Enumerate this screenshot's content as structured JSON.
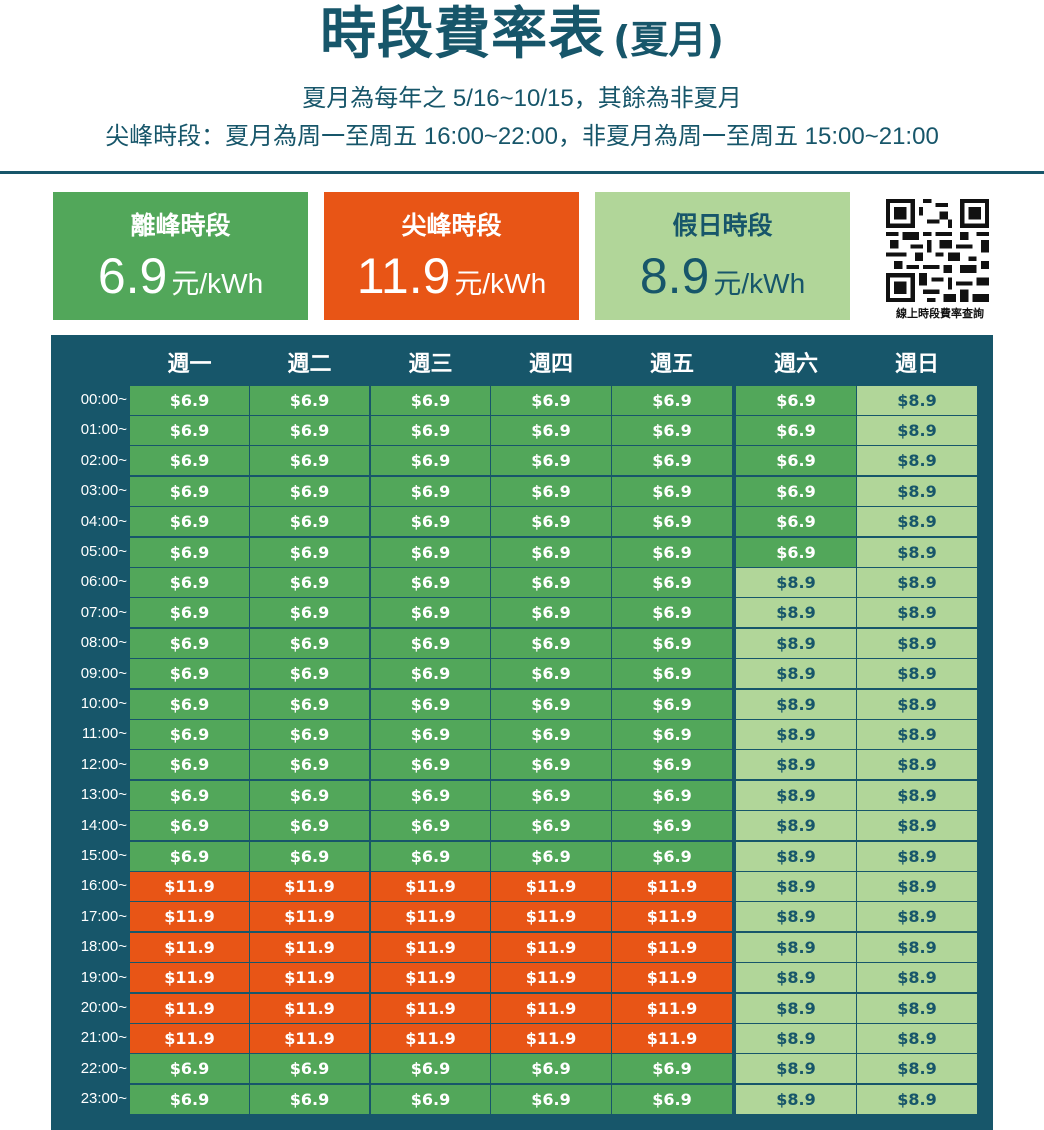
{
  "header": {
    "title": "時段費率表",
    "title_suffix": "(夏月)",
    "line1": "夏月為每年之 5/16~10/15，其餘為非夏月",
    "line2": "尖峰時段：夏月為周一至周五 16:00~22:00，非夏月為周一至周五 15:00~21:00"
  },
  "cards": [
    {
      "label": "離峰時段",
      "price": "6.9",
      "unit": "元/kWh",
      "color": "#52a75a"
    },
    {
      "label": "尖峰時段",
      "price": "11.9",
      "unit": "元/kWh",
      "color": "#e85516"
    },
    {
      "label": "假日時段",
      "price": "8.9",
      "unit": "元/kWh",
      "color": "#b1d699"
    }
  ],
  "qr": {
    "label": "線上時段費率查詢"
  },
  "colors": {
    "offpeak": "#52a75a",
    "peak": "#e85516",
    "holiday": "#b1d699",
    "frame": "#17566a"
  },
  "table": {
    "columns": [
      "週一",
      "週二",
      "週三",
      "週四",
      "週五",
      "週六",
      "週日"
    ],
    "times": [
      "00:00~",
      "01:00~",
      "02:00~",
      "03:00~",
      "04:00~",
      "05:00~",
      "06:00~",
      "07:00~",
      "08:00~",
      "09:00~",
      "10:00~",
      "11:00~",
      "12:00~",
      "13:00~",
      "14:00~",
      "15:00~",
      "16:00~",
      "17:00~",
      "18:00~",
      "19:00~",
      "20:00~",
      "21:00~",
      "22:00~",
      "23:00~"
    ],
    "rows": [
      [
        "$6.9",
        "$6.9",
        "$6.9",
        "$6.9",
        "$6.9",
        "$6.9",
        "$8.9"
      ],
      [
        "$6.9",
        "$6.9",
        "$6.9",
        "$6.9",
        "$6.9",
        "$6.9",
        "$8.9"
      ],
      [
        "$6.9",
        "$6.9",
        "$6.9",
        "$6.9",
        "$6.9",
        "$6.9",
        "$8.9"
      ],
      [
        "$6.9",
        "$6.9",
        "$6.9",
        "$6.9",
        "$6.9",
        "$6.9",
        "$8.9"
      ],
      [
        "$6.9",
        "$6.9",
        "$6.9",
        "$6.9",
        "$6.9",
        "$6.9",
        "$8.9"
      ],
      [
        "$6.9",
        "$6.9",
        "$6.9",
        "$6.9",
        "$6.9",
        "$6.9",
        "$8.9"
      ],
      [
        "$6.9",
        "$6.9",
        "$6.9",
        "$6.9",
        "$6.9",
        "$8.9",
        "$8.9"
      ],
      [
        "$6.9",
        "$6.9",
        "$6.9",
        "$6.9",
        "$6.9",
        "$8.9",
        "$8.9"
      ],
      [
        "$6.9",
        "$6.9",
        "$6.9",
        "$6.9",
        "$6.9",
        "$8.9",
        "$8.9"
      ],
      [
        "$6.9",
        "$6.9",
        "$6.9",
        "$6.9",
        "$6.9",
        "$8.9",
        "$8.9"
      ],
      [
        "$6.9",
        "$6.9",
        "$6.9",
        "$6.9",
        "$6.9",
        "$8.9",
        "$8.9"
      ],
      [
        "$6.9",
        "$6.9",
        "$6.9",
        "$6.9",
        "$6.9",
        "$8.9",
        "$8.9"
      ],
      [
        "$6.9",
        "$6.9",
        "$6.9",
        "$6.9",
        "$6.9",
        "$8.9",
        "$8.9"
      ],
      [
        "$6.9",
        "$6.9",
        "$6.9",
        "$6.9",
        "$6.9",
        "$8.9",
        "$8.9"
      ],
      [
        "$6.9",
        "$6.9",
        "$6.9",
        "$6.9",
        "$6.9",
        "$8.9",
        "$8.9"
      ],
      [
        "$6.9",
        "$6.9",
        "$6.9",
        "$6.9",
        "$6.9",
        "$8.9",
        "$8.9"
      ],
      [
        "$11.9",
        "$11.9",
        "$11.9",
        "$11.9",
        "$11.9",
        "$8.9",
        "$8.9"
      ],
      [
        "$11.9",
        "$11.9",
        "$11.9",
        "$11.9",
        "$11.9",
        "$8.9",
        "$8.9"
      ],
      [
        "$11.9",
        "$11.9",
        "$11.9",
        "$11.9",
        "$11.9",
        "$8.9",
        "$8.9"
      ],
      [
        "$11.9",
        "$11.9",
        "$11.9",
        "$11.9",
        "$11.9",
        "$8.9",
        "$8.9"
      ],
      [
        "$11.9",
        "$11.9",
        "$11.9",
        "$11.9",
        "$11.9",
        "$8.9",
        "$8.9"
      ],
      [
        "$11.9",
        "$11.9",
        "$11.9",
        "$11.9",
        "$11.9",
        "$8.9",
        "$8.9"
      ],
      [
        "$6.9",
        "$6.9",
        "$6.9",
        "$6.9",
        "$6.9",
        "$8.9",
        "$8.9"
      ],
      [
        "$6.9",
        "$6.9",
        "$6.9",
        "$6.9",
        "$6.9",
        "$8.9",
        "$8.9"
      ]
    ]
  }
}
